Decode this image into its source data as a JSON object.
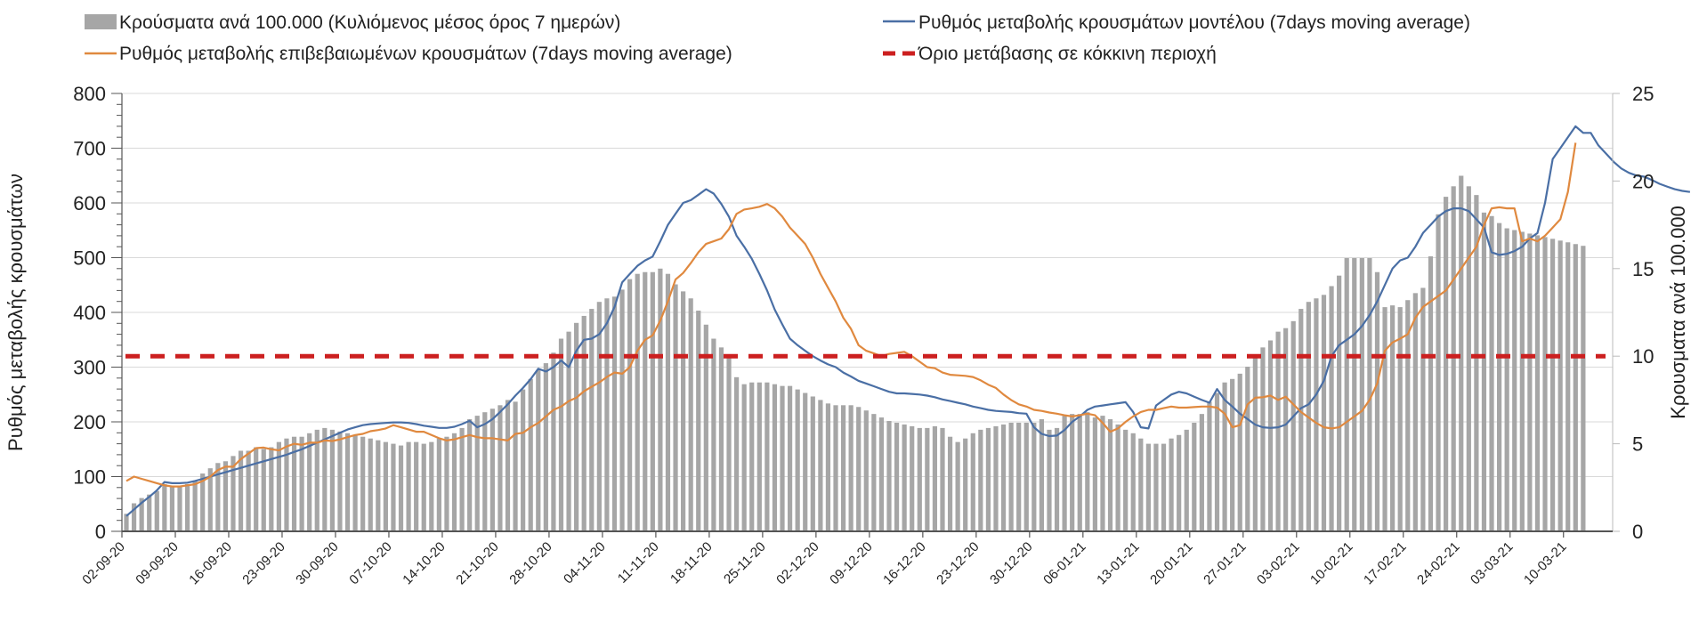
{
  "chart_data": {
    "type": "bar+line",
    "title": "",
    "legend_position": "top",
    "legend": [
      {
        "key": "bars",
        "label": "Κρούσματα ανά 100.000 (Κυλιόμενος μέσος όρος 7 ημερών)",
        "color": "#a6a6a6",
        "symbol": "box"
      },
      {
        "key": "model",
        "label": "Ρυθμός μεταβολής κρουσμάτων μοντέλου (7days moving average)",
        "color": "#4a6fa5",
        "symbol": "line"
      },
      {
        "key": "confirmed",
        "label": "Ρυθμός μεταβολής επιβεβαιωμένων κρουσμάτων (7days moving average)",
        "color": "#e0893f",
        "symbol": "line"
      },
      {
        "key": "threshold",
        "label": "Όριο μετάβασης σε κόκκινη περιοχή",
        "color": "#cc1f1f",
        "symbol": "dash"
      }
    ],
    "ylabel_left": "Ρυθμός μεταβολής κρουσμάτων",
    "ylabel_right": "Κρουσματα ανά 100.000",
    "ylim_left": [
      0,
      800
    ],
    "ylim_right": [
      0,
      25
    ],
    "yticks_left": [
      "0",
      "100",
      "200",
      "300",
      "400",
      "500",
      "600",
      "700",
      "800"
    ],
    "yticks_right": [
      "0",
      "5",
      "10",
      "15",
      "20",
      "25"
    ],
    "xtick_labels": [
      "02-09-20",
      "09-09-20",
      "16-09-20",
      "23-09-20",
      "30-09-20",
      "07-10-20",
      "14-10-20",
      "21-10-20",
      "28-10-20",
      "04-11-20",
      "11-11-20",
      "18-11-20",
      "25-11-20",
      "02-12-20",
      "09-12-20",
      "16-12-20",
      "23-12-20",
      "30-12-20",
      "06-01-21",
      "13-01-21",
      "20-01-21",
      "27-01-21",
      "03-02-21",
      "10-02-21",
      "17-02-21",
      "24-02-21",
      "03-03-21",
      "10-03-21"
    ],
    "x_start": "02-09-20",
    "x_step_days": 1,
    "grid": true,
    "threshold_left_value": 320,
    "bars_per100k": [
      1.0,
      1.6,
      1.9,
      2.1,
      2.3,
      2.7,
      2.6,
      2.6,
      2.7,
      2.9,
      3.3,
      3.6,
      3.9,
      4.0,
      4.3,
      4.6,
      4.6,
      4.8,
      4.7,
      4.8,
      5.1,
      5.3,
      5.4,
      5.4,
      5.6,
      5.8,
      5.9,
      5.8,
      5.7,
      5.6,
      5.5,
      5.4,
      5.3,
      5.2,
      5.1,
      5.0,
      4.9,
      5.1,
      5.1,
      5.0,
      5.1,
      5.3,
      5.4,
      5.6,
      5.9,
      6.4,
      6.6,
      6.8,
      7.0,
      7.2,
      7.5,
      7.4,
      8.1,
      8.7,
      9.2,
      9.6,
      10.2,
      11.0,
      11.4,
      11.9,
      12.3,
      12.7,
      13.1,
      13.3,
      13.4,
      13.8,
      14.4,
      14.7,
      14.8,
      14.8,
      15.0,
      14.7,
      14.1,
      13.7,
      13.3,
      12.6,
      11.8,
      11.0,
      10.5,
      9.9,
      8.8,
      8.4,
      8.5,
      8.5,
      8.5,
      8.4,
      8.3,
      8.3,
      8.1,
      7.9,
      7.7,
      7.5,
      7.3,
      7.2,
      7.2,
      7.2,
      7.1,
      6.9,
      6.7,
      6.5,
      6.3,
      6.2,
      6.1,
      6.0,
      5.9,
      5.9,
      6.0,
      5.9,
      5.4,
      5.1,
      5.3,
      5.6,
      5.8,
      5.9,
      6.0,
      6.1,
      6.2,
      6.2,
      6.2,
      6.2,
      6.4,
      5.8,
      5.9,
      6.6,
      6.7,
      6.7,
      6.8,
      6.5,
      6.6,
      6.4,
      6.1,
      5.8,
      5.6,
      5.3,
      5.0,
      5.0,
      5.0,
      5.3,
      5.5,
      5.8,
      6.2,
      6.7,
      7.4,
      7.9,
      8.5,
      8.7,
      9.0,
      9.4,
      10.0,
      10.5,
      10.9,
      11.4,
      11.6,
      12.0,
      12.7,
      13.1,
      13.3,
      13.5,
      14.0,
      14.6,
      15.6,
      15.6,
      15.6,
      15.6,
      14.8,
      12.8,
      12.9,
      12.8,
      13.2,
      13.6,
      13.9,
      15.7,
      18.1,
      19.1,
      19.7,
      20.3,
      19.7,
      19.2,
      18.2,
      18.0,
      17.6,
      17.3,
      17.2,
      17.1,
      17.0,
      16.9,
      16.8,
      16.7,
      16.6,
      16.5,
      16.4,
      16.3
    ],
    "series": [
      {
        "name": "model",
        "values": [
          28,
          40,
          52,
          63,
          75,
          90,
          88,
          88,
          89,
          92,
          96,
          100,
          104,
          108,
          112,
          116,
          120,
          124,
          128,
          132,
          136,
          140,
          145,
          150,
          156,
          162,
          168,
          174,
          180,
          186,
          190,
          194,
          196,
          197,
          198,
          199,
          199,
          198,
          196,
          193,
          191,
          189,
          189,
          191,
          196,
          202,
          190,
          196,
          205,
          218,
          232,
          248,
          262,
          278,
          297,
          292,
          300,
          312,
          300,
          330,
          350,
          352,
          360,
          380,
          410,
          455,
          470,
          485,
          495,
          502,
          530,
          560,
          580,
          600,
          605,
          615,
          625,
          617,
          598,
          575,
          540,
          520,
          498,
          470,
          440,
          405,
          378,
          352,
          340,
          330,
          320,
          312,
          305,
          300,
          290,
          283,
          275,
          270,
          265,
          260,
          255,
          252,
          252,
          251,
          250,
          248,
          245,
          241,
          238,
          235,
          232,
          228,
          225,
          222,
          220,
          219,
          218,
          216,
          215,
          190,
          178,
          174,
          175,
          185,
          200,
          210,
          222,
          228,
          230,
          232,
          234,
          236,
          218,
          190,
          188,
          230,
          240,
          250,
          255,
          252,
          246,
          240,
          235,
          260,
          240,
          228,
          215,
          205,
          195,
          190,
          189,
          190,
          195,
          210,
          225,
          232,
          250,
          275,
          320,
          340,
          350,
          360,
          375,
          395,
          420,
          450,
          480,
          495,
          500,
          520,
          545,
          560,
          575,
          585,
          590,
          590,
          585,
          570,
          555,
          510,
          505,
          507,
          512,
          520,
          535,
          545,
          600,
          680,
          700,
          720,
          740,
          728,
          728,
          705,
          690,
          675,
          663,
          655,
          650,
          648,
          642,
          635,
          630,
          625,
          622,
          620
        ]
      },
      {
        "name": "confirmed",
        "values": [
          92,
          100,
          96,
          92,
          88,
          84,
          82,
          82,
          84,
          86,
          92,
          100,
          112,
          118,
          118,
          132,
          142,
          152,
          153,
          150,
          148,
          155,
          160,
          158,
          162,
          162,
          166,
          165,
          168,
          172,
          176,
          178,
          183,
          185,
          188,
          194,
          190,
          186,
          182,
          182,
          176,
          170,
          166,
          168,
          172,
          176,
          172,
          170,
          170,
          168,
          166,
          178,
          180,
          190,
          198,
          210,
          222,
          228,
          238,
          244,
          256,
          264,
          272,
          282,
          290,
          288,
          300,
          330,
          350,
          358,
          385,
          420,
          460,
          472,
          490,
          510,
          525,
          530,
          535,
          552,
          580,
          588,
          590,
          593,
          598,
          590,
          575,
          555,
          540,
          525,
          500,
          470,
          445,
          420,
          390,
          370,
          340,
          330,
          325,
          320,
          324,
          326,
          328,
          320,
          310,
          300,
          298,
          290,
          286,
          285,
          284,
          282,
          276,
          268,
          262,
          250,
          240,
          232,
          228,
          222,
          220,
          217,
          215,
          212,
          210,
          212,
          215,
          212,
          198,
          182,
          188,
          200,
          210,
          218,
          222,
          222,
          225,
          228,
          226,
          226,
          227,
          228,
          228,
          226,
          215,
          190,
          194,
          232,
          244,
          245,
          248,
          240,
          246,
          232,
          218,
          208,
          198,
          190,
          188,
          190,
          200,
          210,
          220,
          240,
          270,
          330,
          345,
          352,
          360,
          390,
          410,
          420,
          430,
          440,
          460,
          480,
          500,
          520,
          560,
          590,
          592,
          590,
          590,
          530,
          535,
          530,
          540,
          555,
          570,
          620,
          710
        ]
      },
      {
        "name": "threshold",
        "value": 320
      }
    ]
  }
}
